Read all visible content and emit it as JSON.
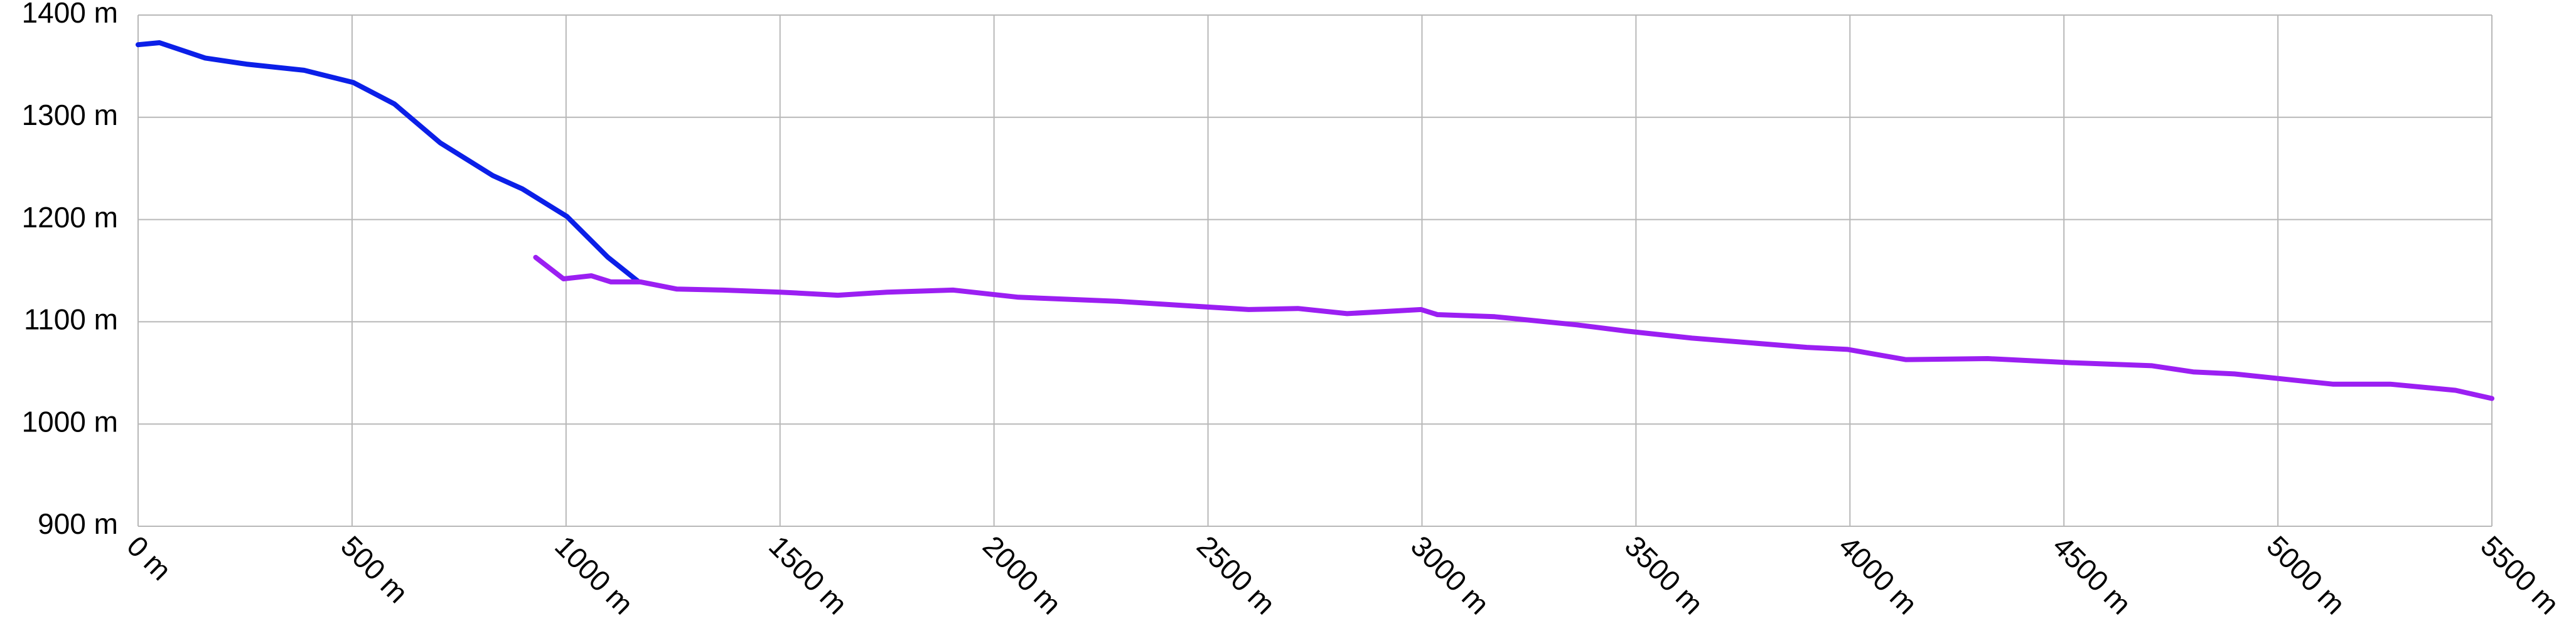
{
  "chart_data": {
    "type": "line",
    "series": [
      {
        "name": "blue track",
        "color": "#0b1fe8",
        "x": [
          0,
          50,
          157,
          253,
          388,
          503,
          599,
          706,
          829,
          898,
          1002,
          1098,
          1167
        ],
        "values": [
          1371,
          1373,
          1358,
          1352,
          1346,
          1334,
          1313,
          1275,
          1243,
          1230,
          1203,
          1163,
          1140
        ]
      },
      {
        "name": "purple track",
        "color": "#9b1ff2",
        "x": [
          929,
          994,
          1059,
          1105,
          1174,
          1259,
          1366,
          1501,
          1635,
          1750,
          1904,
          2057,
          2288,
          2441,
          2595,
          2710,
          2825,
          2998,
          3036,
          3170,
          3362,
          3477,
          3631,
          3899,
          3995,
          4130,
          4322,
          4514,
          4706,
          4802,
          4898,
          5128,
          5262,
          5415,
          5500
        ],
        "values": [
          1163,
          1142,
          1145,
          1139,
          1139,
          1132,
          1131,
          1129,
          1126,
          1129,
          1131,
          1124,
          1120,
          1116,
          1112,
          1113,
          1108,
          1112,
          1107,
          1105,
          1097,
          1091,
          1084,
          1075,
          1073,
          1063,
          1064,
          1060,
          1057,
          1051,
          1049,
          1039,
          1039,
          1033,
          1025
        ]
      }
    ],
    "xlim": [
      0,
      5500
    ],
    "xticks": [
      {
        "value": 0,
        "label": "0 m"
      },
      {
        "value": 500,
        "label": "500 m"
      },
      {
        "value": 1000,
        "label": "1000 m"
      },
      {
        "value": 1500,
        "label": "1500 m"
      },
      {
        "value": 2000,
        "label": "2000 m"
      },
      {
        "value": 2500,
        "label": "2500 m"
      },
      {
        "value": 3000,
        "label": "3000 m"
      },
      {
        "value": 3500,
        "label": "3500 m"
      },
      {
        "value": 4000,
        "label": "4000 m"
      },
      {
        "value": 4500,
        "label": "4500 m"
      },
      {
        "value": 5000,
        "label": "5000 m"
      },
      {
        "value": 5500,
        "label": "5500 m"
      }
    ],
    "ylim": [
      900,
      1400
    ],
    "yticks": [
      {
        "value": 900,
        "label": "900 m"
      },
      {
        "value": 1000,
        "label": "1000 m"
      },
      {
        "value": 1100,
        "label": "1100 m"
      },
      {
        "value": 1200,
        "label": "1200 m"
      },
      {
        "value": 1300,
        "label": "1300 m"
      },
      {
        "value": 1400,
        "label": "1400 m"
      }
    ],
    "grid": true
  }
}
